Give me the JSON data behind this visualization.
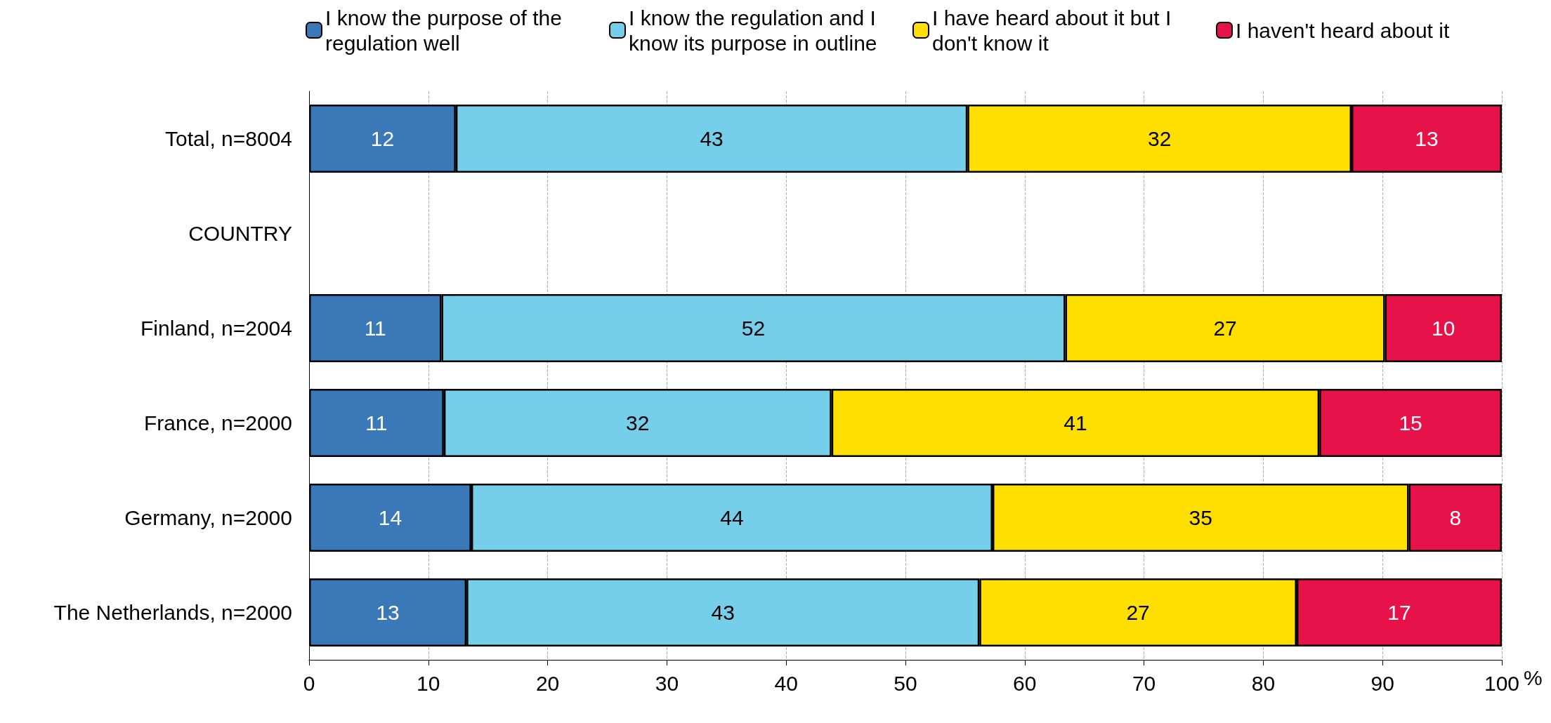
{
  "chart_data": {
    "type": "bar",
    "orientation": "horizontal",
    "stacked": true,
    "categories": [
      "Total, n=8004",
      "COUNTRY",
      "Finland, n=2004",
      "France, n=2000",
      "Germany, n=2000",
      "The Netherlands, n=2000"
    ],
    "series": [
      {
        "name": "I know the purpose of the regulation well",
        "color": "#3a78b8",
        "values": [
          12.3,
          null,
          11.1,
          11.3,
          13.6,
          13.2
        ],
        "value_labels": [
          "12",
          null,
          "11",
          "11",
          "14",
          "13"
        ]
      },
      {
        "name": "I know the regulation and I know its purpose in outline",
        "color": "#76cfea",
        "values": [
          42.9,
          null,
          52.3,
          32.5,
          43.7,
          43.0
        ],
        "value_labels": [
          "43",
          null,
          "52",
          "32",
          "44",
          "43"
        ]
      },
      {
        "name": "I have heard about it but I don't know it",
        "color": "#ffdf00",
        "values": [
          32.2,
          null,
          26.8,
          40.9,
          34.9,
          26.6
        ],
        "value_labels": [
          "32",
          null,
          "27",
          "41",
          "35",
          "27"
        ]
      },
      {
        "name": "I haven't heard about it",
        "color": "#e8124a",
        "values": [
          12.6,
          null,
          9.8,
          15.3,
          7.8,
          17.2
        ],
        "value_labels": [
          "13",
          null,
          "10",
          "15",
          "8",
          "17"
        ]
      }
    ],
    "xlabel": "%",
    "xlim": [
      0,
      100
    ],
    "xticks": [
      0,
      10,
      20,
      30,
      40,
      50,
      60,
      70,
      80,
      90,
      100
    ],
    "grid": "x",
    "legend": "top"
  }
}
